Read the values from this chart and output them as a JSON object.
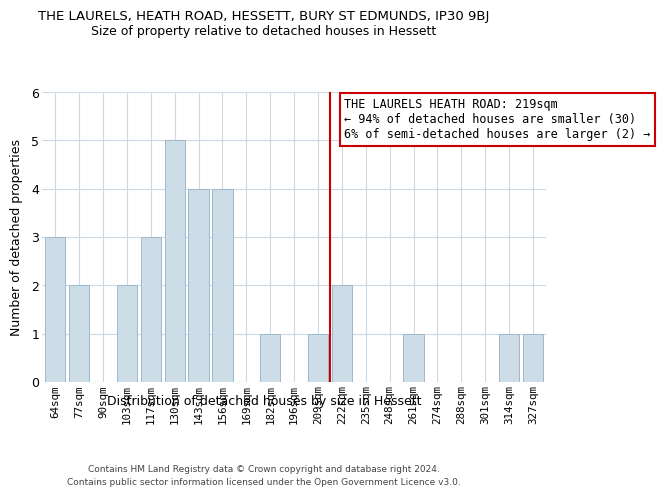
{
  "title": "THE LAURELS, HEATH ROAD, HESSETT, BURY ST EDMUNDS, IP30 9BJ",
  "subtitle": "Size of property relative to detached houses in Hessett",
  "xlabel": "Distribution of detached houses by size in Hessett",
  "ylabel": "Number of detached properties",
  "bar_labels": [
    "64sqm",
    "77sqm",
    "90sqm",
    "103sqm",
    "117sqm",
    "130sqm",
    "143sqm",
    "156sqm",
    "169sqm",
    "182sqm",
    "196sqm",
    "209sqm",
    "222sqm",
    "235sqm",
    "248sqm",
    "261sqm",
    "274sqm",
    "288sqm",
    "301sqm",
    "314sqm",
    "327sqm"
  ],
  "bar_values": [
    3,
    2,
    0,
    2,
    3,
    5,
    4,
    4,
    0,
    1,
    0,
    1,
    2,
    0,
    0,
    1,
    0,
    0,
    0,
    1,
    1
  ],
  "bar_color": "#ccdde8",
  "bar_edge_color": "#a0b8cc",
  "highlight_index": 12,
  "highlight_line_color": "#cc0000",
  "annotation_text_line1": "THE LAURELS HEATH ROAD: 219sqm",
  "annotation_text_line2": "← 94% of detached houses are smaller (30)",
  "annotation_text_line3": "6% of semi-detached houses are larger (2) →",
  "annotation_border_color": "#cc0000",
  "ylim": [
    0,
    6
  ],
  "yticks": [
    0,
    1,
    2,
    3,
    4,
    5,
    6
  ],
  "footer_line1": "Contains HM Land Registry data © Crown copyright and database right 2024.",
  "footer_line2": "Contains public sector information licensed under the Open Government Licence v3.0.",
  "background_color": "#ffffff",
  "grid_color": "#ccd8e4"
}
